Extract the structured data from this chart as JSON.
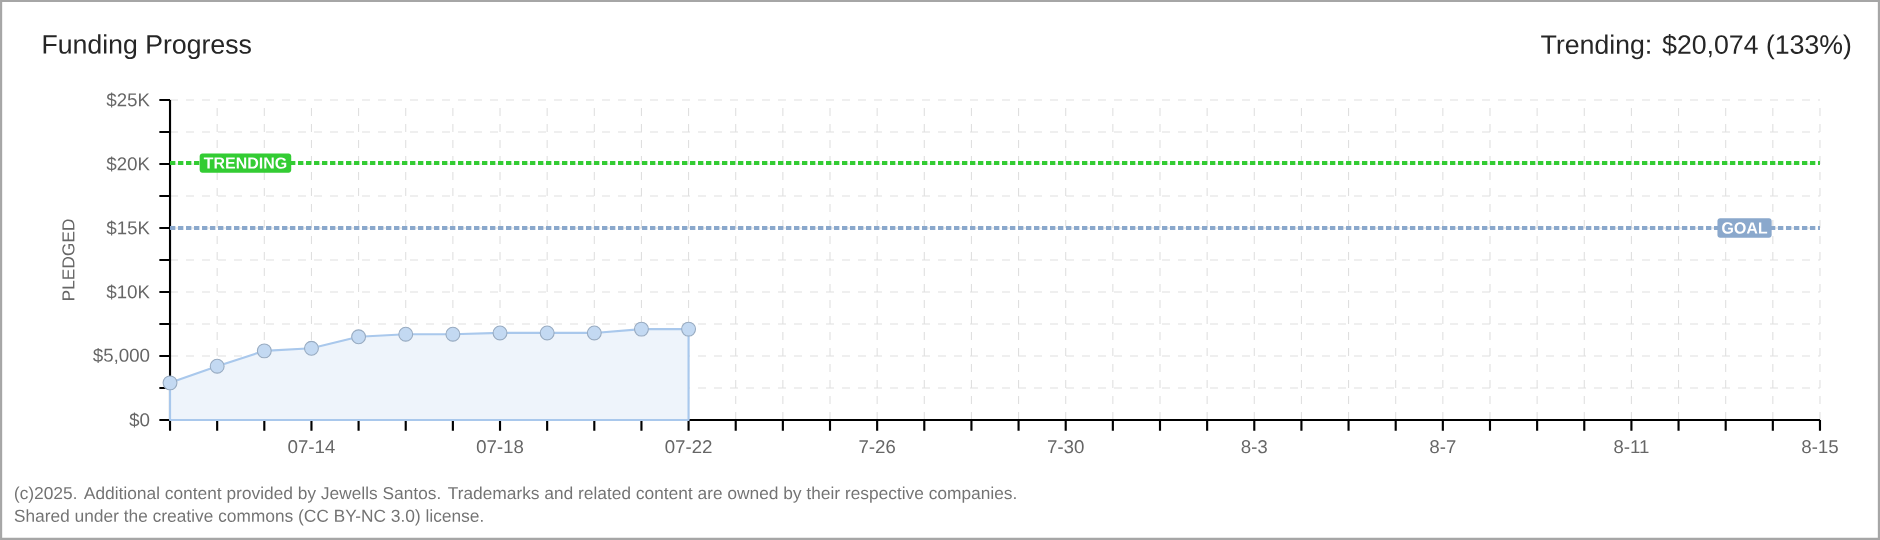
{
  "chart_data": {
    "type": "area",
    "title": "Funding Progress",
    "ylabel": "PLEDGED",
    "annotations": [
      "Trending: $20,074 (133%)",
      "(c)2025. Additional content provided by Jewells Santos. Trademarks and related content are owned by their respective companies.",
      "Shared under the creative commons (CC BY-NC 3.0) license."
    ],
    "x": [
      "2025-07-11",
      "2025-07-12",
      "2025-07-13",
      "2025-07-14",
      "2025-07-15",
      "2025-07-16",
      "2025-07-17",
      "2025-07-18",
      "2025-07-19",
      "2025-07-20",
      "2025-07-21",
      "2025-07-22"
    ],
    "series": [
      {
        "color": "#a9c8ec",
        "values": [
          2900,
          4200,
          5400,
          5600,
          6500,
          6700,
          6700,
          6800,
          6800,
          6800,
          7100,
          7100
        ]
      }
    ],
    "marker": "circle",
    "grid": true,
    "xlim": [
      "2025-07-11",
      "2025-08-15"
    ],
    "xticks": [
      {
        "value": "2025-07-11",
        "label": null
      },
      {
        "value": "2025-07-12",
        "label": null
      },
      {
        "value": "2025-07-13",
        "label": null
      },
      {
        "value": "2025-07-14",
        "label": "07-14"
      },
      {
        "value": "2025-07-15",
        "label": null
      },
      {
        "value": "2025-07-16",
        "label": null
      },
      {
        "value": "2025-07-17",
        "label": null
      },
      {
        "value": "2025-07-18",
        "label": "07-18"
      },
      {
        "value": "2025-07-19",
        "label": null
      },
      {
        "value": "2025-07-20",
        "label": null
      },
      {
        "value": "2025-07-21",
        "label": null
      },
      {
        "value": "2025-07-22",
        "label": "07-22"
      },
      {
        "value": "2025-07-23",
        "label": null
      },
      {
        "value": "2025-07-24",
        "label": null
      },
      {
        "value": "2025-07-25",
        "label": null
      },
      {
        "value": "2025-07-26",
        "label": "7-26"
      },
      {
        "value": "2025-07-27",
        "label": null
      },
      {
        "value": "2025-07-28",
        "label": null
      },
      {
        "value": "2025-07-29",
        "label": null
      },
      {
        "value": "2025-07-30",
        "label": "7-30"
      },
      {
        "value": "2025-07-31",
        "label": null
      },
      {
        "value": "2025-08-01",
        "label": null
      },
      {
        "value": "2025-08-02",
        "label": null
      },
      {
        "value": "2025-08-03",
        "label": "8-3"
      },
      {
        "value": "2025-08-04",
        "label": null
      },
      {
        "value": "2025-08-05",
        "label": null
      },
      {
        "value": "2025-08-06",
        "label": null
      },
      {
        "value": "2025-08-07",
        "label": "8-7"
      },
      {
        "value": "2025-08-08",
        "label": null
      },
      {
        "value": "2025-08-09",
        "label": null
      },
      {
        "value": "2025-08-10",
        "label": null
      },
      {
        "value": "2025-08-11",
        "label": "8-11"
      },
      {
        "value": "2025-08-12",
        "label": null
      },
      {
        "value": "2025-08-13",
        "label": null
      },
      {
        "value": "2025-08-14",
        "label": null
      },
      {
        "value": "2025-08-15",
        "label": "8-15"
      }
    ],
    "ylim": [
      0,
      25000
    ],
    "yticks": [
      {
        "value": 0,
        "label": "$0"
      },
      {
        "value": 2500,
        "label": null
      },
      {
        "value": 5000,
        "label": "$5,000"
      },
      {
        "value": 7500,
        "label": null
      },
      {
        "value": 10000,
        "label": "$10K"
      },
      {
        "value": 12500,
        "label": null
      },
      {
        "value": 15000,
        "label": "$15K"
      },
      {
        "value": 17500,
        "label": null
      },
      {
        "value": 20000,
        "label": "$20K"
      },
      {
        "value": 22500,
        "label": null
      },
      {
        "value": 25000,
        "label": "$25K"
      }
    ],
    "ref_lines": [
      {
        "axis": "y",
        "value": 20074,
        "label": "TRENDING",
        "color": "#33cc33",
        "line_style": "dashed"
      },
      {
        "axis": "y",
        "value": 15000,
        "label": "GOAL",
        "color": "#8aa8cc",
        "line_style": "dashed"
      }
    ]
  }
}
